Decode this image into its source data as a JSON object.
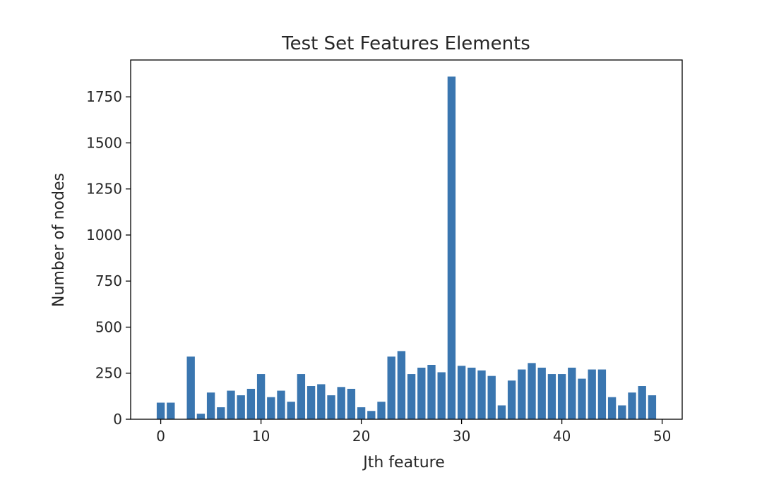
{
  "chart_data": {
    "type": "bar",
    "title": "Test Set Features Elements",
    "xlabel": "Jth feature",
    "ylabel": "Number of nodes",
    "x": [
      0,
      1,
      2,
      3,
      4,
      5,
      6,
      7,
      8,
      9,
      10,
      11,
      12,
      13,
      14,
      15,
      16,
      17,
      18,
      19,
      20,
      21,
      22,
      23,
      24,
      25,
      26,
      27,
      28,
      29,
      30,
      31,
      32,
      33,
      34,
      35,
      36,
      37,
      38,
      39,
      40,
      41,
      42,
      43,
      44,
      45,
      46,
      47,
      48,
      49
    ],
    "values": [
      90,
      90,
      0,
      340,
      30,
      145,
      65,
      155,
      130,
      165,
      245,
      120,
      155,
      95,
      245,
      180,
      190,
      130,
      175,
      165,
      65,
      45,
      95,
      340,
      370,
      245,
      280,
      295,
      255,
      1860,
      290,
      280,
      265,
      235,
      75,
      210,
      270,
      305,
      280,
      245,
      245,
      280,
      220,
      270,
      270,
      120,
      75,
      145,
      180,
      130
    ],
    "xticks": [
      "0",
      "10",
      "20",
      "30",
      "40",
      "50"
    ],
    "yticks": [
      "0",
      "250",
      "500",
      "750",
      "1000",
      "1250",
      "1500",
      "1750"
    ],
    "xlim": [
      -3,
      52
    ],
    "ylim": [
      0,
      1950
    ],
    "bar_color": "#3a76b0",
    "grid": false,
    "legend": "none"
  }
}
